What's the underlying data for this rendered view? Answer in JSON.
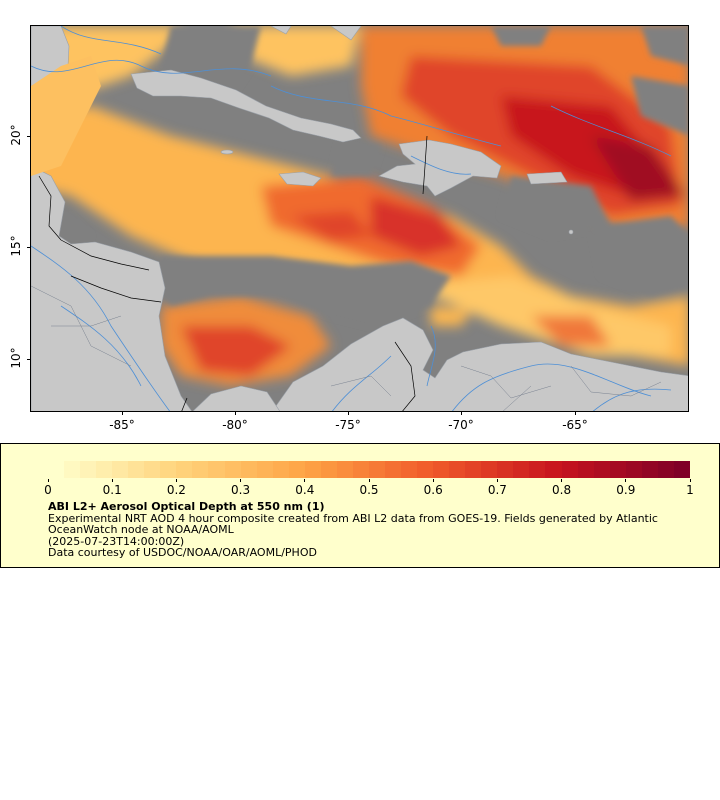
{
  "map": {
    "x_ticks": [
      "-85°",
      "-80°",
      "-75°",
      "-70°",
      "-65°"
    ],
    "y_ticks": [
      "20°",
      "15°",
      "10°"
    ]
  },
  "colorbar": {
    "colors": [
      "#ffffcc",
      "#ffd27a",
      "#fea345",
      "#f05a2a",
      "#c8141e",
      "#800026"
    ],
    "ticks": [
      "0",
      "0.1",
      "0.2",
      "0.3",
      "0.4",
      "0.5",
      "0.6",
      "0.7",
      "0.8",
      "0.9",
      "1"
    ]
  },
  "legend": {
    "title": "ABI L2+ Aerosol Optical Depth at 550 nm (1)",
    "description": "Experimental NRT AOD 4 hour composite created from ABI L2 data from GOES-19. Fields generated by Atlantic OceanWatch node at NOAA/AOML",
    "timestamp": "(2025-07-23T14:00:00Z)",
    "credit": "Data courtesy of USDOC/NOAA/OAR/AOML/PHOD"
  },
  "colors": {
    "land": "#c8c8c8",
    "missing": "#808080",
    "rivers": "#4d8fd6",
    "panel": "#ffffcc"
  }
}
